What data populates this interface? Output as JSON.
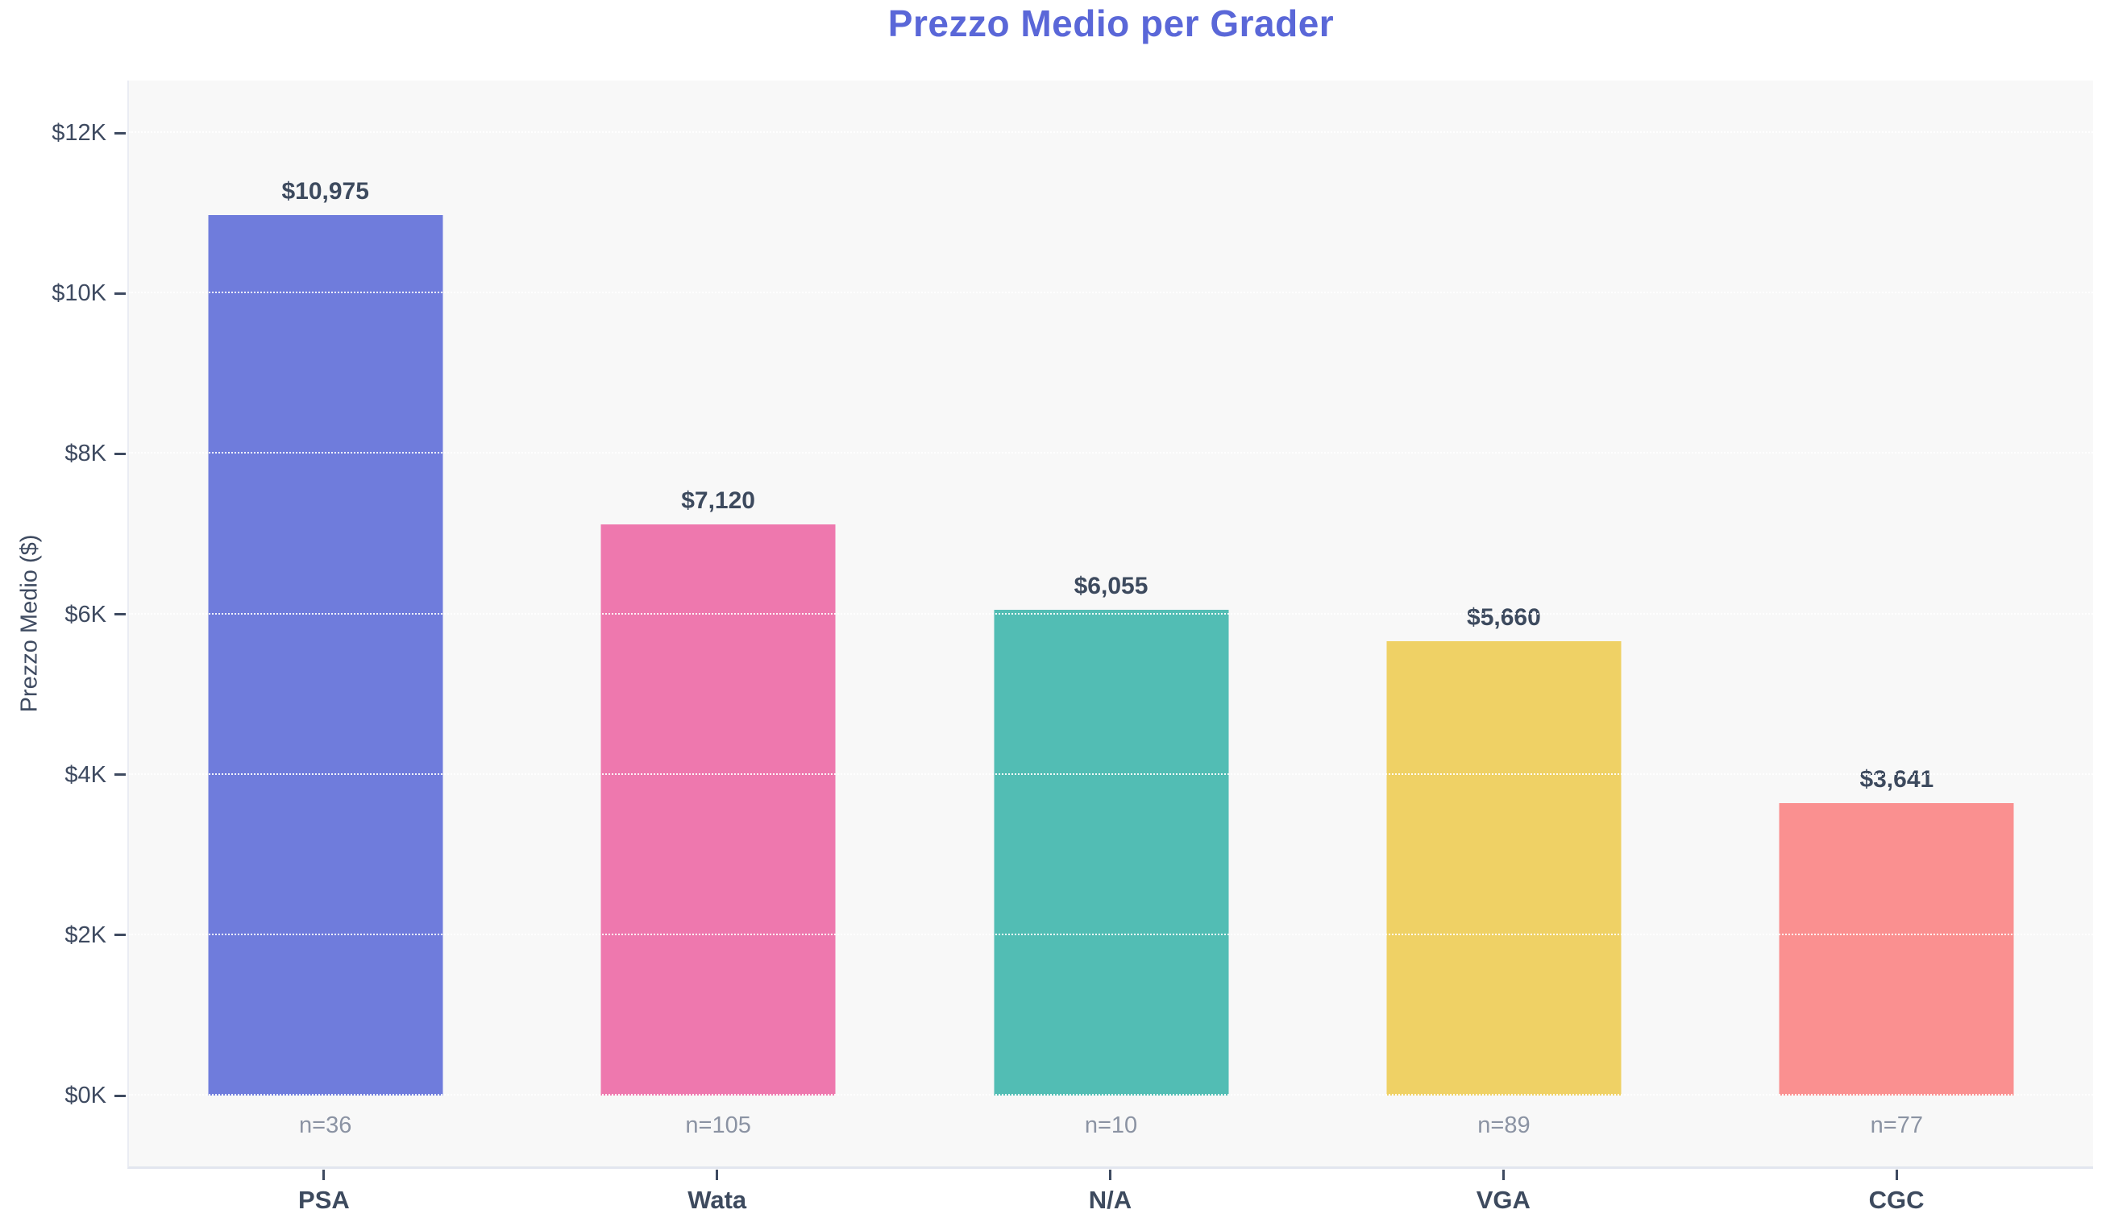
{
  "chart_data": {
    "type": "bar",
    "title": "Prezzo Medio per Grader",
    "xlabel": "",
    "ylabel": "Prezzo Medio ($)",
    "categories": [
      "PSA",
      "Wata",
      "N/A",
      "VGA",
      "CGC"
    ],
    "values": [
      10975,
      7120,
      6055,
      5660,
      3641
    ],
    "value_labels": [
      "$10,975",
      "$7,120",
      "$6,055",
      "$5,660",
      "$3,641"
    ],
    "counts": [
      "n=36",
      "n=105",
      "n=10",
      "n=89",
      "n=77"
    ],
    "bar_colors": [
      "#6F7CDC",
      "#EE78AE",
      "#52BDB4",
      "#EFD165",
      "#FA9090"
    ],
    "ylim": [
      0,
      12000
    ],
    "yticks": [
      0,
      2000,
      4000,
      6000,
      8000,
      10000,
      12000
    ],
    "ytick_labels": [
      "$0K",
      "$2K",
      "$4K",
      "$6K",
      "$8K",
      "$10K",
      "$12K"
    ],
    "grid": "horizontal-dotted-over-bars",
    "legend": "none",
    "colors": {
      "title": "#5A67D8",
      "axis_text": "#3E4A60",
      "value_label": "#3D4A5E",
      "count_label": "#8B93A3",
      "plot_background": "#F8F8F8",
      "page_background": "#FFFFFF"
    }
  }
}
